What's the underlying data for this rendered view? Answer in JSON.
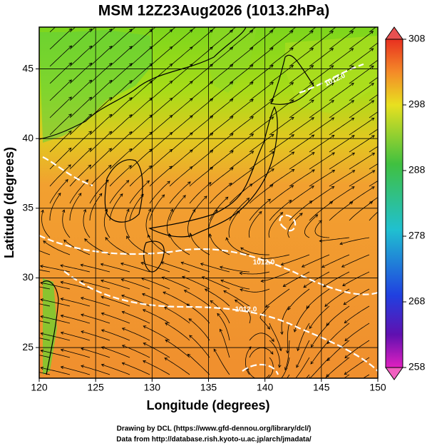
{
  "title": "MSM 12Z23Aug2026 (1013.2hPa)",
  "map": {
    "xlabel": "Longitude (degrees)",
    "ylabel": "Latitude  (degrees)",
    "xlim": [
      120,
      150
    ],
    "ylim": [
      22.8,
      48
    ],
    "xticks": [
      120,
      125,
      130,
      135,
      140,
      145,
      150
    ],
    "yticks": [
      25,
      30,
      35,
      40,
      45
    ],
    "contour_labels": [
      "1012.0",
      "1012.0",
      "1012.0"
    ]
  },
  "colorbar": {
    "lim": [
      258,
      308
    ],
    "ticks": [
      258,
      268,
      278,
      288,
      298,
      308
    ]
  },
  "footer": [
    "Drawing by DCL (https://www.gfd-dennou.org/library/dcl/)",
    "Data from http://database.rish.kyoto-u.ac.jp/arch/jmadata/"
  ]
}
